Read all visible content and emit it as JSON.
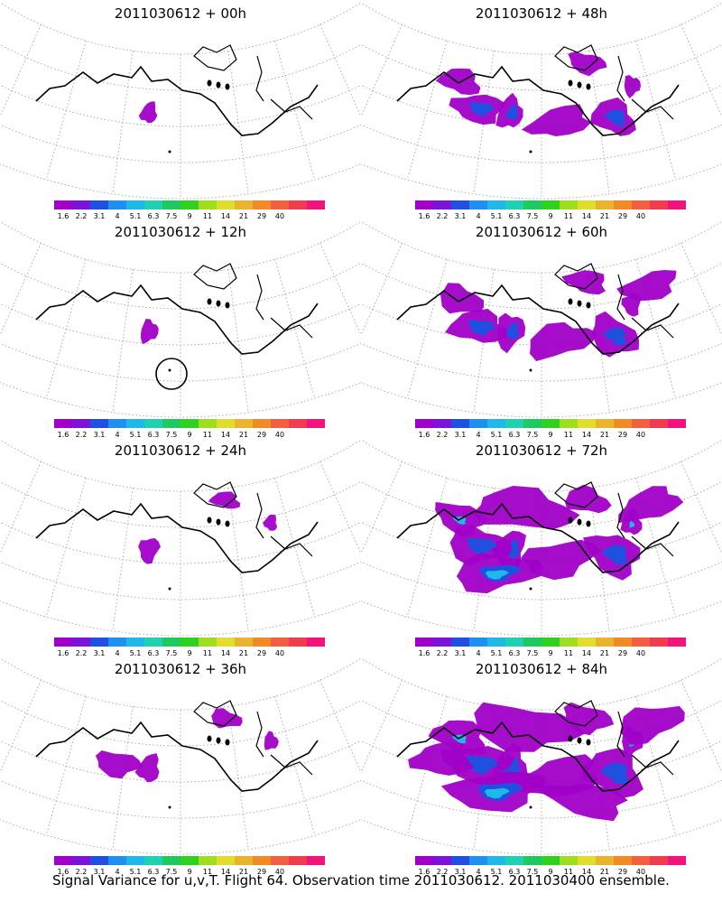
{
  "panels": [
    {
      "title": "2011030612 + 00h",
      "level": 0.05,
      "circle": false
    },
    {
      "title": "2011030612 + 48h",
      "level": 0.55,
      "circle": false
    },
    {
      "title": "2011030612 + 12h",
      "level": 0.12,
      "circle": true
    },
    {
      "title": "2011030612 + 60h",
      "level": 0.7,
      "circle": false
    },
    {
      "title": "2011030612 + 24h",
      "level": 0.25,
      "circle": false
    },
    {
      "title": "2011030612 + 72h",
      "level": 0.85,
      "circle": false
    },
    {
      "title": "2011030612 + 36h",
      "level": 0.35,
      "circle": false
    },
    {
      "title": "2011030612 + 84h",
      "level": 1.0,
      "circle": false
    }
  ],
  "colorbar": {
    "labels": [
      "1.6",
      "2.2",
      "3.1",
      "4",
      "5.1",
      "6.3",
      "7.5",
      "9",
      "11",
      "14",
      "21",
      "29",
      "40"
    ],
    "colors": [
      "#a000c8",
      "#7a14d8",
      "#2050e0",
      "#2090f0",
      "#20b8e8",
      "#20d0b0",
      "#20c860",
      "#30d020",
      "#a0dc20",
      "#e0dc30",
      "#e8b430",
      "#f08c28",
      "#f06040",
      "#f03c50",
      "#f0147c"
    ]
  },
  "colors": {
    "purple": "#a000c8",
    "blue": "#2050e0",
    "cyan": "#20b8e8",
    "coast": "#000000",
    "grid": "#9a9a9a"
  },
  "footer": "Signal Variance for u,v,T. Flight 64. Observation time 2011030612. 2011030400 ensemble."
}
